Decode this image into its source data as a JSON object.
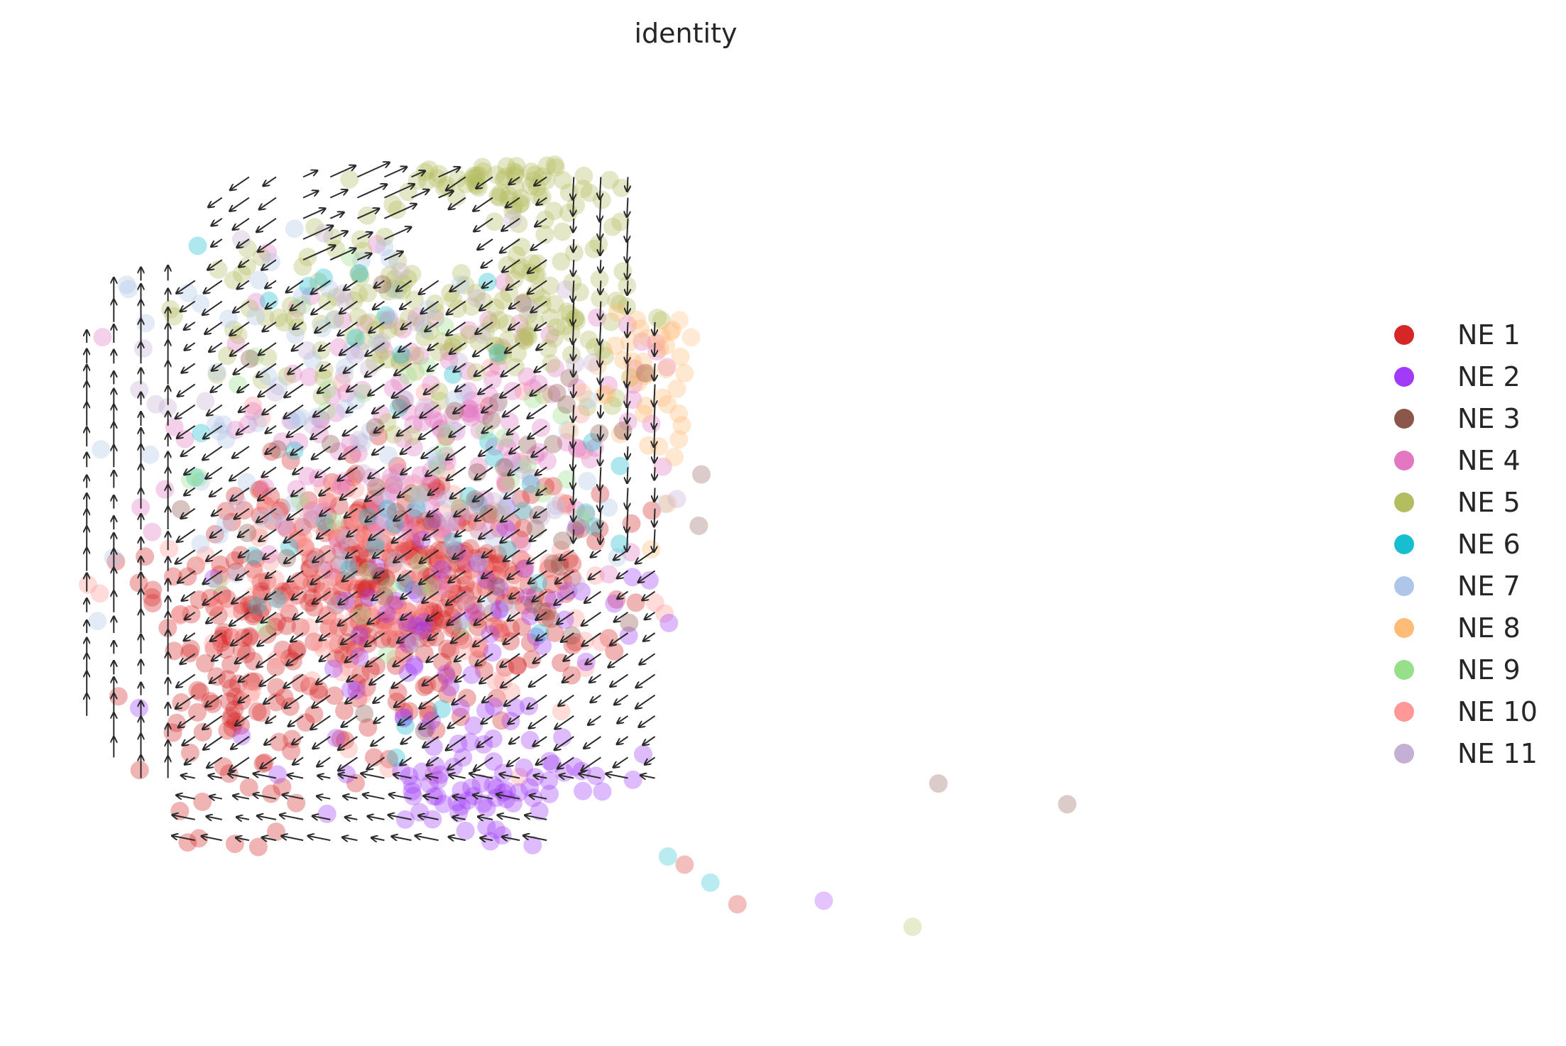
{
  "chart_data": {
    "type": "scatter",
    "title": "identity",
    "xlabel": "",
    "ylabel": "",
    "grid": false,
    "axes_visible": false,
    "overlay": "velocity-arrows",
    "legend_position": "right",
    "point_alpha": 0.35,
    "xlim": [
      0,
      100
    ],
    "ylim": [
      0,
      100
    ],
    "series": [
      {
        "name": "NE 1",
        "color": "#d62728"
      },
      {
        "name": "NE 2",
        "color": "#a13bf7"
      },
      {
        "name": "NE 3",
        "color": "#8c564b"
      },
      {
        "name": "NE 4",
        "color": "#e377c2"
      },
      {
        "name": "NE 5",
        "color": "#b5bd61"
      },
      {
        "name": "NE 6",
        "color": "#17becf"
      },
      {
        "name": "NE 7",
        "color": "#aec7e8"
      },
      {
        "name": "NE 8",
        "color": "#ffbb78"
      },
      {
        "name": "NE 9",
        "color": "#98df8a"
      },
      {
        "name": "NE 10",
        "color": "#ff9896"
      },
      {
        "name": "NE 11",
        "color": "#c5b0d5"
      }
    ],
    "regions": [
      {
        "series": "NE 1",
        "center": [
          27,
          46
        ],
        "spread": [
          10,
          9
        ],
        "count": 360
      },
      {
        "series": "NE 1",
        "center": [
          14,
          35
        ],
        "spread": [
          6,
          12
        ],
        "count": 120
      },
      {
        "series": "NE 10",
        "center": [
          25,
          45
        ],
        "spread": [
          13,
          12
        ],
        "count": 160
      },
      {
        "series": "NE 4",
        "center": [
          28,
          63
        ],
        "spread": [
          12,
          11
        ],
        "count": 170
      },
      {
        "series": "NE 5",
        "center": [
          30,
          77
        ],
        "spread": [
          13,
          9
        ],
        "count": 190
      },
      {
        "series": "NE 5",
        "center": [
          34,
          90
        ],
        "spread": [
          6,
          4
        ],
        "count": 60
      },
      {
        "series": "NE 2",
        "center": [
          33,
          23
        ],
        "spread": [
          7,
          5
        ],
        "count": 70
      },
      {
        "series": "NE 2",
        "center": [
          29,
          41
        ],
        "spread": [
          12,
          10
        ],
        "count": 70
      },
      {
        "series": "NE 7",
        "center": [
          22,
          62
        ],
        "spread": [
          14,
          18
        ],
        "count": 90
      },
      {
        "series": "NE 6",
        "center": [
          24,
          58
        ],
        "spread": [
          13,
          18
        ],
        "count": 45
      },
      {
        "series": "NE 9",
        "center": [
          27,
          56
        ],
        "spread": [
          12,
          16
        ],
        "count": 40
      },
      {
        "series": "NE 8",
        "center": [
          46,
          68
        ],
        "spread": [
          5,
          9
        ],
        "count": 40
      },
      {
        "series": "NE 3",
        "center": [
          31,
          55
        ],
        "spread": [
          14,
          16
        ],
        "count": 45
      },
      {
        "series": "NE 11",
        "center": [
          24,
          64
        ],
        "spread": [
          14,
          16
        ],
        "count": 50
      }
    ],
    "outlier_points": [
      {
        "series": "NE 3",
        "x": 67.6,
        "y": 23.3
      },
      {
        "series": "NE 3",
        "x": 77.6,
        "y": 21.0
      },
      {
        "series": "NE 5",
        "x": 65.6,
        "y": 7.4
      },
      {
        "series": "NE 2",
        "x": 58.7,
        "y": 10.3
      },
      {
        "series": "NE 1",
        "x": 52.0,
        "y": 9.9
      },
      {
        "series": "NE 6",
        "x": 49.9,
        "y": 12.3
      },
      {
        "series": "NE 1",
        "x": 47.9,
        "y": 14.3
      },
      {
        "series": "NE 6",
        "x": 46.6,
        "y": 15.2
      },
      {
        "series": "NE 8",
        "x": 47.5,
        "y": 74.7
      },
      {
        "series": "NE 8",
        "x": 48.4,
        "y": 72.8
      },
      {
        "series": "NE 3",
        "x": 49.2,
        "y": 57.6
      },
      {
        "series": "NE 3",
        "x": 49.0,
        "y": 51.9
      }
    ]
  }
}
